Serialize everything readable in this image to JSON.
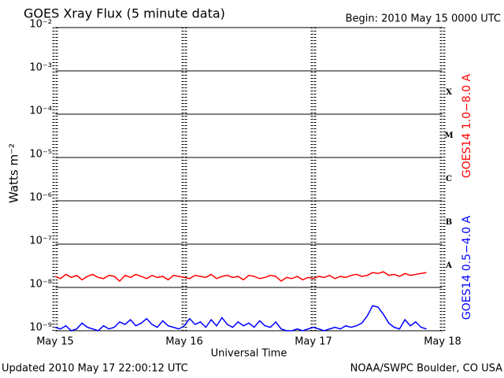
{
  "chart_data": {
    "type": "line",
    "title": "GOES Xray Flux (5 minute data)",
    "begin": "Begin:  2010 May 15 0000 UTC",
    "updated": "Updated 2010 May 17 22:00:12 UTC",
    "credit": "NOAA/SWPC Boulder, CO USA",
    "y_label": "Watts m⁻²",
    "x_label": "Universal Time",
    "log_y": true,
    "grid": true,
    "flare_classes": [
      "X",
      "M",
      "C",
      "B",
      "A"
    ],
    "xlim": [
      0,
      72
    ],
    "xticks": [
      {
        "value": 0,
        "label": "May 15"
      },
      {
        "value": 24,
        "label": "May 16"
      },
      {
        "value": 48,
        "label": "May 17"
      },
      {
        "value": 72,
        "label": "May 18"
      }
    ],
    "ylim": [
      1e-09,
      0.01
    ],
    "yticks": [
      {
        "value": 1e-09,
        "label": "10⁻⁹"
      },
      {
        "value": 1e-08,
        "label": "10⁻⁸"
      },
      {
        "value": 1e-07,
        "label": "10⁻⁷"
      },
      {
        "value": 1e-06,
        "label": "10⁻⁶"
      },
      {
        "value": 1e-05,
        "label": "10⁻⁵"
      },
      {
        "value": 0.0001,
        "label": "10⁻⁴"
      },
      {
        "value": 0.001,
        "label": "10⁻³"
      },
      {
        "value": 0.01,
        "label": "10⁻²"
      }
    ],
    "x": [
      0,
      1,
      2,
      3,
      4,
      5,
      6,
      7,
      8,
      9,
      10,
      11,
      12,
      13,
      14,
      15,
      16,
      17,
      18,
      19,
      20,
      21,
      22,
      23,
      24,
      25,
      26,
      27,
      28,
      29,
      30,
      31,
      32,
      33,
      34,
      35,
      36,
      37,
      38,
      39,
      40,
      41,
      42,
      43,
      44,
      45,
      46,
      47,
      48,
      49,
      50,
      51,
      52,
      53,
      54,
      55,
      56,
      57,
      58,
      59,
      60,
      61,
      62,
      63,
      64,
      65,
      66,
      67,
      68,
      69
    ],
    "series": [
      {
        "name": "GOES14 1.0−8.0 A",
        "color": "#ff0000",
        "values": [
          1.8e-08,
          1.6e-08,
          2e-08,
          1.7e-08,
          1.9e-08,
          1.5e-08,
          1.8e-08,
          2e-08,
          1.7e-08,
          1.6e-08,
          1.9e-08,
          1.8e-08,
          1.4e-08,
          1.9e-08,
          1.7e-08,
          2e-08,
          1.8e-08,
          1.6e-08,
          1.9e-08,
          1.7e-08,
          1.8e-08,
          1.5e-08,
          1.9e-08,
          1.8e-08,
          1.7e-08,
          1.6e-08,
          1.9e-08,
          1.8e-08,
          1.7e-08,
          2e-08,
          1.6e-08,
          1.8e-08,
          1.9e-08,
          1.7e-08,
          1.8e-08,
          1.5e-08,
          1.9e-08,
          1.8e-08,
          1.6e-08,
          1.7e-08,
          1.9e-08,
          1.8e-08,
          1.4e-08,
          1.7e-08,
          1.6e-08,
          1.8e-08,
          1.5e-08,
          1.7e-08,
          1.6e-08,
          1.8e-08,
          1.7e-08,
          1.9e-08,
          1.6e-08,
          1.8e-08,
          1.7e-08,
          1.9e-08,
          2e-08,
          1.8e-08,
          1.9e-08,
          2.2e-08,
          2.1e-08,
          2.3e-08,
          1.9e-08,
          2e-08,
          1.8e-08,
          2.1e-08,
          1.9e-08,
          2e-08,
          2.1e-08,
          2.2e-08
        ]
      },
      {
        "name": "GOES14 0.5−4.0 A",
        "color": "#0000ff",
        "values": [
          1.2e-09,
          1.1e-09,
          1.3e-09,
          1e-09,
          1.1e-09,
          1.5e-09,
          1.2e-09,
          1.1e-09,
          1e-09,
          1.3e-09,
          1.1e-09,
          1.2e-09,
          1.6e-09,
          1.4e-09,
          1.8e-09,
          1.3e-09,
          1.5e-09,
          1.9e-09,
          1.4e-09,
          1.2e-09,
          1.7e-09,
          1.3e-09,
          1.2e-09,
          1.1e-09,
          1.3e-09,
          1.9e-09,
          1.4e-09,
          1.6e-09,
          1.2e-09,
          1.8e-09,
          1.3e-09,
          2e-09,
          1.4e-09,
          1.2e-09,
          1.6e-09,
          1.3e-09,
          1.5e-09,
          1.2e-09,
          1.7e-09,
          1.3e-09,
          1.2e-09,
          1.6e-09,
          1.1e-09,
          1e-09,
          1e-09,
          1.1e-09,
          1e-09,
          1.1e-09,
          1.2e-09,
          1.1e-09,
          1e-09,
          1.1e-09,
          1.2e-09,
          1.1e-09,
          1.3e-09,
          1.2e-09,
          1.3e-09,
          1.5e-09,
          2.2e-09,
          3.8e-09,
          3.5e-09,
          2.4e-09,
          1.5e-09,
          1.2e-09,
          1.1e-09,
          1.8e-09,
          1.3e-09,
          1.6e-09,
          1.2e-09,
          1.1e-09
        ]
      }
    ]
  }
}
